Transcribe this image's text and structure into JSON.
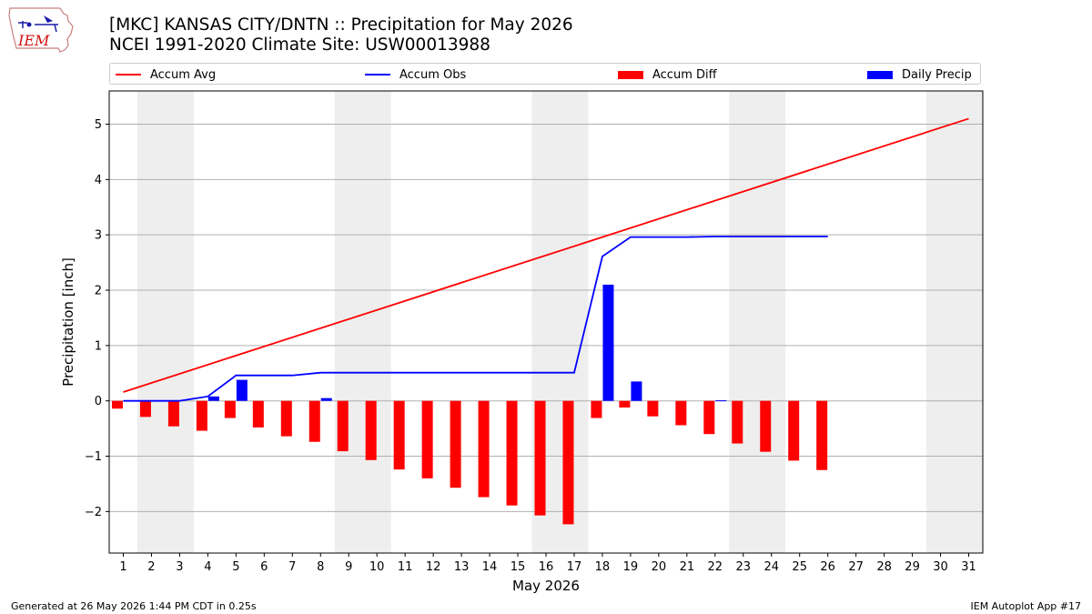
{
  "logo": {
    "text": "IEM",
    "icon": "iowa-state-logo-icon"
  },
  "chart_data": {
    "type": "bar",
    "title": "[MKC] KANSAS CITY/DNTN :: Precipitation for May 2026",
    "subtitle": "NCEI 1991-2020 Climate Site: USW00013988",
    "xlabel": "May 2026",
    "ylabel": "Precipitation [inch]",
    "ylim": [
      -2.75,
      5.6
    ],
    "xlim": [
      0.5,
      31.5
    ],
    "yticks": [
      -2,
      -1,
      0,
      1,
      2,
      3,
      4,
      5
    ],
    "ytick_labels": [
      "−2",
      "−1",
      "0",
      "1",
      "2",
      "3",
      "4",
      "5"
    ],
    "xticks": [
      1,
      2,
      3,
      4,
      5,
      6,
      7,
      8,
      9,
      10,
      11,
      12,
      13,
      14,
      15,
      16,
      17,
      18,
      19,
      20,
      21,
      22,
      23,
      24,
      25,
      26,
      27,
      28,
      29,
      30,
      31
    ],
    "grid": "y",
    "legend_position": "top",
    "weekend_shading": [
      [
        1.5,
        3.5
      ],
      [
        8.5,
        10.5
      ],
      [
        15.5,
        17.5
      ],
      [
        22.5,
        24.5
      ],
      [
        29.5,
        31.5
      ]
    ],
    "colors": {
      "avg": "#ff0000",
      "obs": "#0000ff",
      "diff": "#ff0000",
      "daily": "#0000ff",
      "shade": "#eeeeee",
      "grid": "#b0b0b0"
    },
    "series": [
      {
        "name": "Accum Avg",
        "kind": "line",
        "x": [
          1,
          31
        ],
        "values": [
          0.16,
          5.1
        ]
      },
      {
        "name": "Accum Obs",
        "kind": "line",
        "x": [
          1,
          2,
          3,
          4,
          5,
          6,
          7,
          8,
          9,
          10,
          11,
          12,
          13,
          14,
          15,
          16,
          17,
          18,
          19,
          20,
          21,
          22,
          23,
          24,
          25,
          26
        ],
        "values": [
          0.0,
          0.0,
          0.0,
          0.08,
          0.46,
          0.46,
          0.46,
          0.51,
          0.51,
          0.51,
          0.51,
          0.51,
          0.51,
          0.51,
          0.51,
          0.51,
          0.51,
          2.61,
          2.96,
          2.96,
          2.96,
          2.97,
          2.97,
          2.97,
          2.97,
          2.97
        ]
      },
      {
        "name": "Accum Diff",
        "kind": "bar",
        "x": [
          1,
          2,
          3,
          4,
          5,
          6,
          7,
          8,
          9,
          10,
          11,
          12,
          13,
          14,
          15,
          16,
          17,
          18,
          19,
          20,
          21,
          22,
          23,
          24,
          25,
          26
        ],
        "values": [
          -0.14,
          -0.29,
          -0.46,
          -0.54,
          -0.31,
          -0.48,
          -0.64,
          -0.74,
          -0.91,
          -1.07,
          -1.24,
          -1.4,
          -1.57,
          -1.74,
          -1.89,
          -2.07,
          -2.23,
          -0.31,
          -0.12,
          -0.28,
          -0.44,
          -0.6,
          -0.77,
          -0.92,
          -1.08,
          -1.25
        ]
      },
      {
        "name": "Daily Precip",
        "kind": "bar",
        "x": [
          4,
          5,
          8,
          18,
          19,
          22
        ],
        "values": [
          0.08,
          0.38,
          0.05,
          2.1,
          0.35,
          0.01
        ]
      }
    ]
  },
  "footer": {
    "left": "Generated at 26 May 2026 1:44 PM CDT in 0.25s",
    "right": "IEM Autoplot App #17"
  }
}
